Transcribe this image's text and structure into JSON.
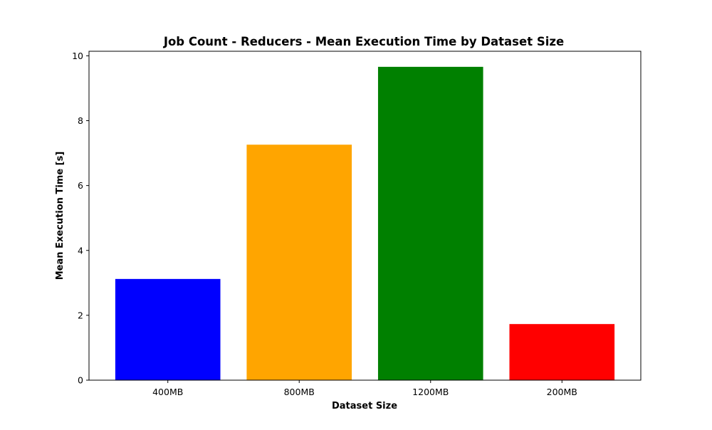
{
  "chart_data": {
    "type": "bar",
    "title": "Job Count - Reducers - Mean Execution Time by Dataset Size",
    "xlabel": "Dataset Size",
    "ylabel": "Mean Execution Time [s]",
    "categories": [
      "400MB",
      "800MB",
      "1200MB",
      "200MB"
    ],
    "values": [
      3.12,
      7.26,
      9.66,
      1.73
    ],
    "colors": [
      "#0000ff",
      "#ffa500",
      "#008000",
      "#ff0000"
    ],
    "ylim": [
      0,
      10.14
    ],
    "yticks": [
      0,
      2,
      4,
      6,
      8,
      10
    ],
    "grid": false,
    "legend": "none"
  }
}
